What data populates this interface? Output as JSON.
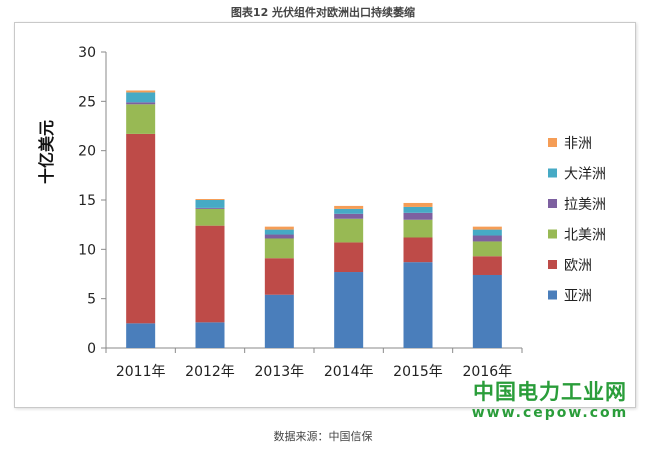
{
  "figure": {
    "title": "图表12  光伏组件对欧洲出口持续萎缩",
    "source": "数据来源：中国信保"
  },
  "watermark": {
    "name": "中国电力工业网",
    "url": "www.cepow.com"
  },
  "chart_data": {
    "type": "bar",
    "stacked": true,
    "title": "",
    "xlabel": "",
    "ylabel": "十亿美元",
    "ylim": [
      0,
      30
    ],
    "yticks": [
      0,
      5,
      10,
      15,
      20,
      25,
      30
    ],
    "grid": false,
    "legend_position": "right",
    "categories": [
      "2011年",
      "2012年",
      "2013年",
      "2014年",
      "2015年",
      "2016年"
    ],
    "series": [
      {
        "name": "亚洲",
        "color": "#4a7ebb",
        "values": [
          2.5,
          2.6,
          5.4,
          7.7,
          8.7,
          7.4
        ]
      },
      {
        "name": "欧洲",
        "color": "#be4b48",
        "values": [
          19.2,
          9.8,
          3.7,
          3.0,
          2.5,
          1.9
        ]
      },
      {
        "name": "北美洲",
        "color": "#98b954",
        "values": [
          3.0,
          1.7,
          2.0,
          2.4,
          1.8,
          1.5
        ]
      },
      {
        "name": "拉美洲",
        "color": "#7d60a0",
        "values": [
          0.2,
          0.1,
          0.4,
          0.5,
          0.7,
          0.6
        ]
      },
      {
        "name": "大洋洲",
        "color": "#46aac5",
        "values": [
          1.0,
          0.8,
          0.5,
          0.5,
          0.6,
          0.6
        ]
      },
      {
        "name": "非洲",
        "color": "#f59d56",
        "values": [
          0.2,
          0.1,
          0.3,
          0.3,
          0.4,
          0.3
        ]
      }
    ]
  }
}
